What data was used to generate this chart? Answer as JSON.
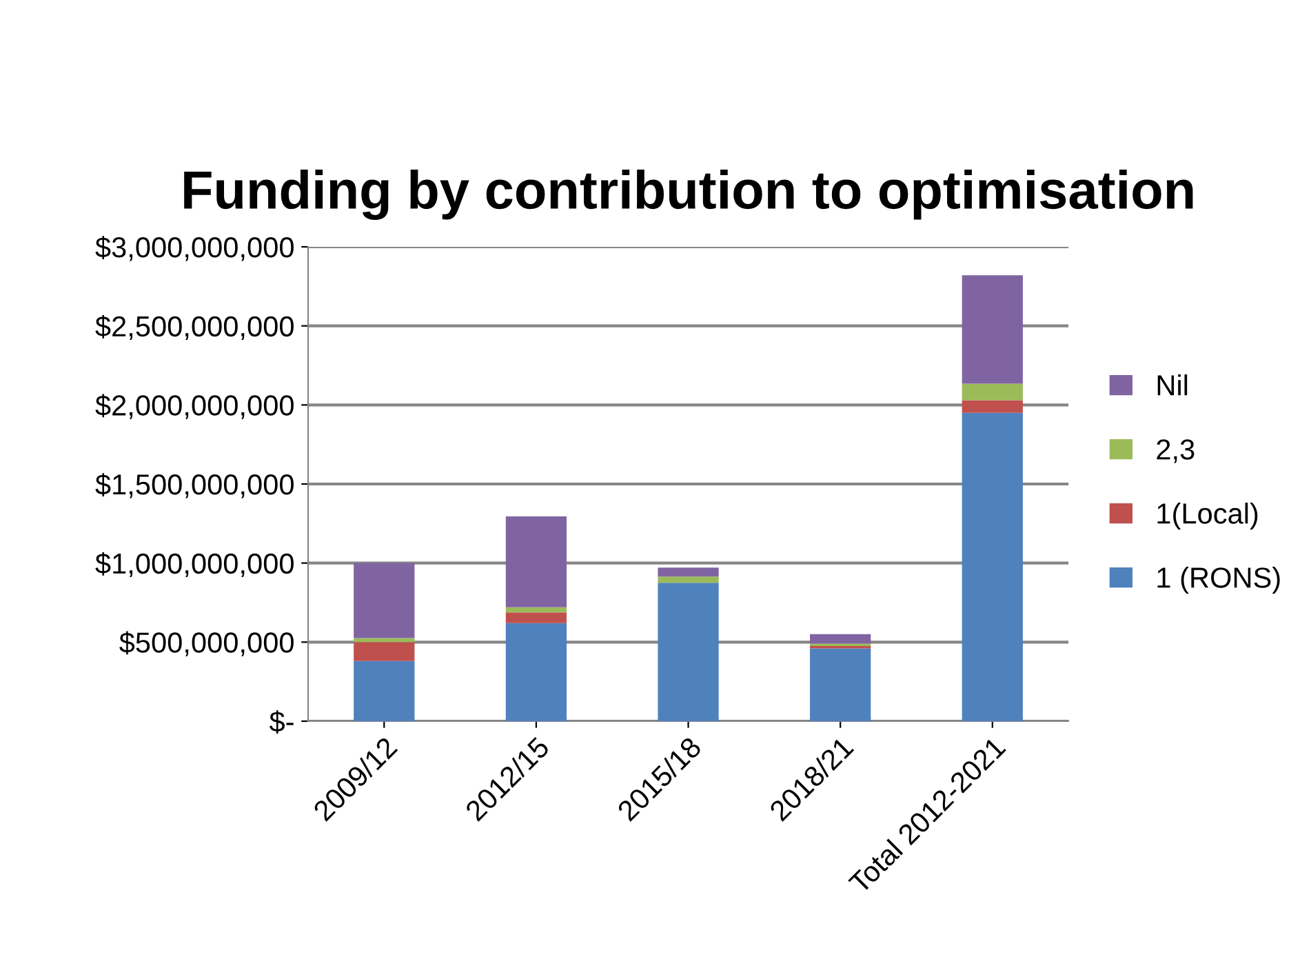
{
  "chart_data": {
    "type": "bar",
    "title": "Funding by contribution to optimisation",
    "stacked": true,
    "categories": [
      "2009/12",
      "2012/15",
      "2015/18",
      "2018/21",
      "Total 2012-2021"
    ],
    "series": [
      {
        "name": "1 (RONS)",
        "color": "#4f81bd",
        "values": [
          380000000,
          620000000,
          875000000,
          460000000,
          1950000000
        ]
      },
      {
        "name": "1(Local)",
        "color": "#c0504d",
        "values": [
          120000000,
          68000000,
          0,
          15000000,
          80000000
        ]
      },
      {
        "name": "2,3",
        "color": "#9bbb59",
        "values": [
          25000000,
          32000000,
          40000000,
          15000000,
          105000000
        ]
      },
      {
        "name": "Nil",
        "color": "#8064a2",
        "values": [
          475000000,
          575000000,
          56000000,
          60000000,
          685000000
        ]
      }
    ],
    "ylim": [
      0,
      3000000000
    ],
    "yticks": [
      {
        "value": 0,
        "label": "$-"
      },
      {
        "value": 500000000,
        "label": "$500,000,000"
      },
      {
        "value": 1000000000,
        "label": "$1,000,000,000"
      },
      {
        "value": 1500000000,
        "label": "$1,500,000,000"
      },
      {
        "value": 2000000000,
        "label": "$2,000,000,000"
      },
      {
        "value": 2500000000,
        "label": "$2,500,000,000"
      },
      {
        "value": 3000000000,
        "label": "$3,000,000,000"
      }
    ],
    "grid": "y",
    "legend": "right"
  }
}
